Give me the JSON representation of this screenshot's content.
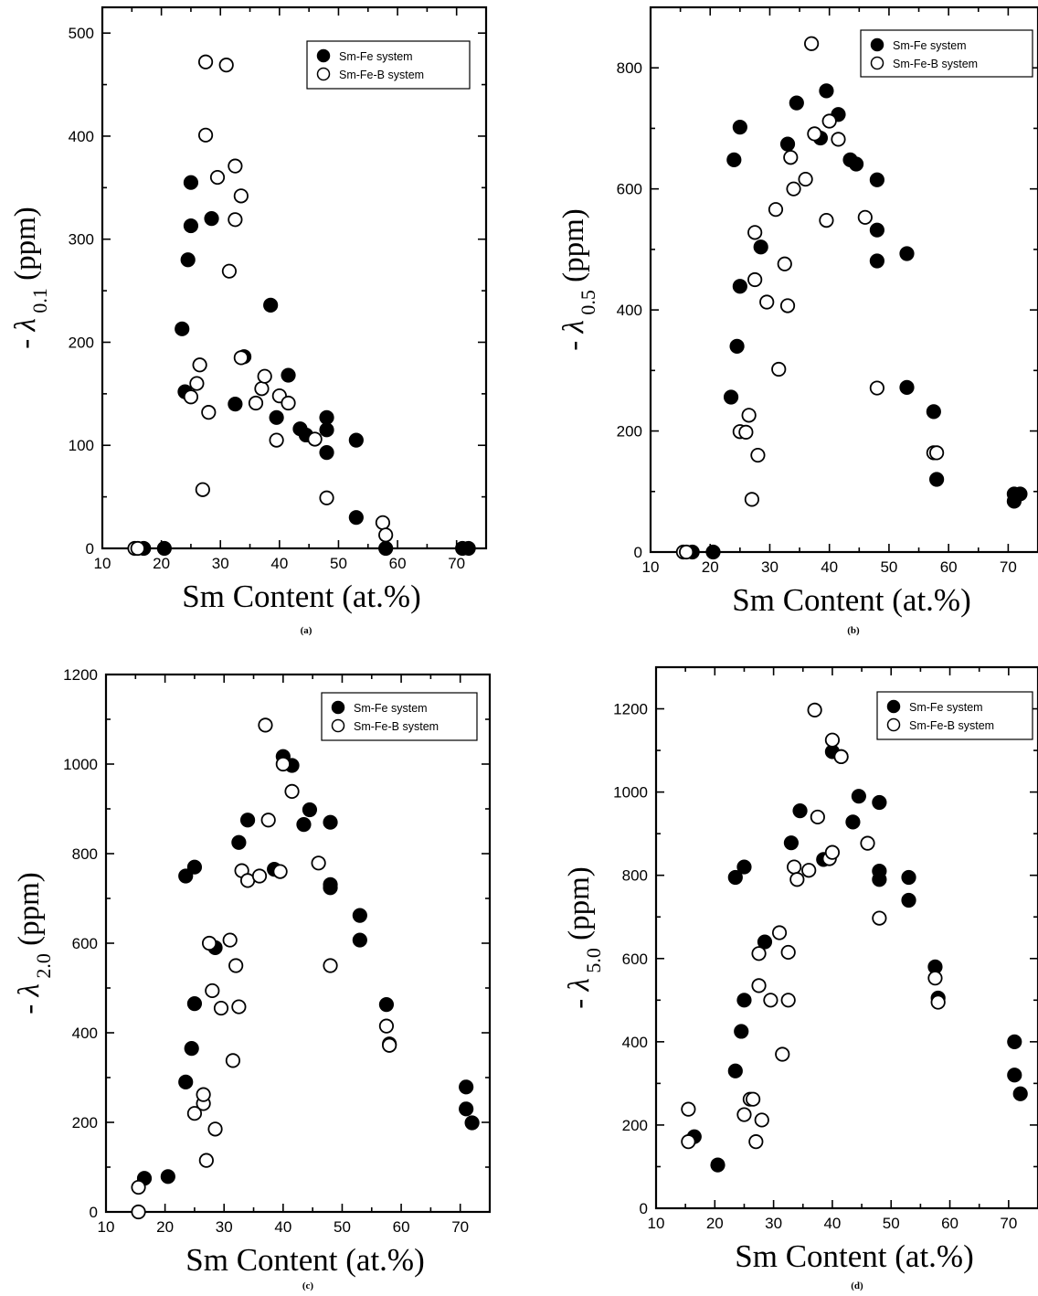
{
  "legend": {
    "filled_label": "Sm-Fe system",
    "open_label": "Sm-Fe-B system"
  },
  "chart_data": [
    {
      "type": "scatter",
      "panel_label": "(a)",
      "xlabel": "Sm  Content (at.%)",
      "ylabel_prefix": "- λ",
      "ylabel_sub": "0.1",
      "ylabel_unit": " (ppm)",
      "xlim": [
        10,
        75
      ],
      "ylim": [
        0,
        525
      ],
      "xticks": [
        10,
        20,
        30,
        40,
        50,
        60,
        70
      ],
      "yticks": [
        0,
        100,
        200,
        300,
        400,
        500
      ],
      "legend_position": "top-right",
      "series": [
        {
          "name": "Sm-Fe system",
          "marker": "filled",
          "points": [
            [
              17,
              0
            ],
            [
              20.5,
              0
            ],
            [
              23.5,
              213
            ],
            [
              24,
              152
            ],
            [
              24.5,
              280
            ],
            [
              25,
              313
            ],
            [
              25,
              355
            ],
            [
              28.5,
              320
            ],
            [
              32.5,
              140
            ],
            [
              34,
              186
            ],
            [
              38.5,
              236
            ],
            [
              39.5,
              127
            ],
            [
              41.5,
              168
            ],
            [
              43.5,
              116
            ],
            [
              44.5,
              110
            ],
            [
              48,
              127
            ],
            [
              48,
              115
            ],
            [
              48,
              93
            ],
            [
              53,
              105
            ],
            [
              53,
              30
            ],
            [
              58,
              0
            ],
            [
              71,
              0
            ],
            [
              72,
              0
            ]
          ]
        },
        {
          "name": "Sm-Fe-B system",
          "marker": "open",
          "points": [
            [
              15.5,
              0
            ],
            [
              16,
              0
            ],
            [
              25,
              147
            ],
            [
              26,
              160
            ],
            [
              26.5,
              178
            ],
            [
              27,
              57
            ],
            [
              27.5,
              472
            ],
            [
              27.5,
              401
            ],
            [
              28,
              132
            ],
            [
              29.5,
              360
            ],
            [
              31,
              469
            ],
            [
              31.5,
              269
            ],
            [
              32.5,
              371
            ],
            [
              32.5,
              319
            ],
            [
              33.5,
              342
            ],
            [
              33.5,
              185
            ],
            [
              36,
              141
            ],
            [
              37,
              155
            ],
            [
              37.5,
              167
            ],
            [
              39.5,
              105
            ],
            [
              40,
              148
            ],
            [
              41.5,
              141
            ],
            [
              46,
              106
            ],
            [
              48,
              49
            ],
            [
              57.5,
              25
            ],
            [
              58,
              13
            ]
          ]
        }
      ]
    },
    {
      "type": "scatter",
      "panel_label": "(b)",
      "xlabel": "Sm  Content (at.%)",
      "ylabel_prefix": "- λ",
      "ylabel_sub": "0.5",
      "ylabel_unit": " (ppm)",
      "xlim": [
        10,
        75
      ],
      "ylim": [
        0,
        900
      ],
      "xticks": [
        10,
        20,
        30,
        40,
        50,
        60,
        70
      ],
      "yticks": [
        0,
        200,
        400,
        600,
        800
      ],
      "legend_position": "top-right",
      "series": [
        {
          "name": "Sm-Fe system",
          "marker": "filled",
          "points": [
            [
              17,
              0
            ],
            [
              20.5,
              0
            ],
            [
              23.5,
              256
            ],
            [
              24,
              648
            ],
            [
              24.5,
              340
            ],
            [
              25,
              439
            ],
            [
              25,
              702
            ],
            [
              28.5,
              504
            ],
            [
              33,
              674
            ],
            [
              34.5,
              742
            ],
            [
              38.5,
              684
            ],
            [
              39.5,
              762
            ],
            [
              41.5,
              723
            ],
            [
              43.5,
              648
            ],
            [
              44.5,
              641
            ],
            [
              48,
              615
            ],
            [
              48,
              532
            ],
            [
              48,
              481
            ],
            [
              53,
              493
            ],
            [
              53,
              272
            ],
            [
              57.5,
              232
            ],
            [
              58,
              120
            ],
            [
              71,
              84
            ],
            [
              71,
              96
            ],
            [
              72,
              96
            ]
          ]
        },
        {
          "name": "Sm-Fe-B system",
          "marker": "open",
          "points": [
            [
              15.5,
              0
            ],
            [
              16,
              0
            ],
            [
              25,
              199
            ],
            [
              26,
              198
            ],
            [
              26.5,
              226
            ],
            [
              27,
              87
            ],
            [
              27.5,
              528
            ],
            [
              27.5,
              450
            ],
            [
              28,
              160
            ],
            [
              29.5,
              413
            ],
            [
              31,
              566
            ],
            [
              31.5,
              302
            ],
            [
              32.5,
              476
            ],
            [
              33,
              407
            ],
            [
              33.5,
              652
            ],
            [
              34,
              600
            ],
            [
              36,
              616
            ],
            [
              37,
              840
            ],
            [
              37.5,
              691
            ],
            [
              39.5,
              548
            ],
            [
              40,
              712
            ],
            [
              41.5,
              682
            ],
            [
              46,
              553
            ],
            [
              48,
              271
            ],
            [
              57.5,
              164
            ],
            [
              58,
              164
            ]
          ]
        }
      ]
    },
    {
      "type": "scatter",
      "panel_label": "(c)",
      "xlabel": "Sm  Content (at.%)",
      "ylabel_prefix": "- λ",
      "ylabel_sub": "2.0",
      "ylabel_unit": " (ppm)",
      "xlim": [
        10,
        75
      ],
      "ylim": [
        0,
        1200
      ],
      "xticks": [
        10,
        20,
        30,
        40,
        50,
        60,
        70
      ],
      "yticks": [
        0,
        200,
        400,
        600,
        800,
        1000,
        1200
      ],
      "legend_position": "top-right",
      "series": [
        {
          "name": "Sm-Fe system",
          "marker": "filled",
          "points": [
            [
              16.5,
              75
            ],
            [
              20.5,
              79
            ],
            [
              23.5,
              290
            ],
            [
              23.5,
              750
            ],
            [
              24.5,
              365
            ],
            [
              25,
              465
            ],
            [
              25,
              770
            ],
            [
              28.5,
              590
            ],
            [
              32.5,
              825
            ],
            [
              34,
              875
            ],
            [
              38.5,
              765
            ],
            [
              40,
              1017
            ],
            [
              41.5,
              997
            ],
            [
              43.5,
              865
            ],
            [
              44.5,
              898
            ],
            [
              48,
              870
            ],
            [
              48,
              731
            ],
            [
              48,
              724
            ],
            [
              53,
              662
            ],
            [
              53,
              607
            ],
            [
              57.5,
              463
            ],
            [
              58,
              375
            ],
            [
              71,
              279
            ],
            [
              71,
              230
            ],
            [
              72,
              199
            ]
          ]
        },
        {
          "name": "Sm-Fe-B system",
          "marker": "open",
          "points": [
            [
              15.5,
              55
            ],
            [
              15.5,
              0
            ],
            [
              25,
              220
            ],
            [
              26.5,
              242
            ],
            [
              26.5,
              262
            ],
            [
              27,
              115
            ],
            [
              27.5,
              600
            ],
            [
              28,
              494
            ],
            [
              28.5,
              185
            ],
            [
              29.5,
              455
            ],
            [
              31,
              607
            ],
            [
              31.5,
              338
            ],
            [
              32,
              550
            ],
            [
              32.5,
              458
            ],
            [
              33,
              762
            ],
            [
              34,
              740
            ],
            [
              36,
              750
            ],
            [
              37,
              1087
            ],
            [
              37.5,
              875
            ],
            [
              39.5,
              760
            ],
            [
              40,
              1000
            ],
            [
              41.5,
              939
            ],
            [
              46,
              779
            ],
            [
              48,
              550
            ],
            [
              57.5,
              415
            ],
            [
              58,
              372
            ]
          ]
        }
      ]
    },
    {
      "type": "scatter",
      "panel_label": "(d)",
      "xlabel": "Sm  Content (at.%)",
      "ylabel_prefix": "- λ",
      "ylabel_sub": "5.0",
      "ylabel_unit": " (ppm)",
      "xlim": [
        10,
        75
      ],
      "ylim": [
        0,
        1300
      ],
      "xticks": [
        10,
        20,
        30,
        40,
        50,
        60,
        70
      ],
      "yticks": [
        0,
        200,
        400,
        600,
        800,
        1000,
        1200
      ],
      "legend_position": "top-right",
      "series": [
        {
          "name": "Sm-Fe system",
          "marker": "filled",
          "points": [
            [
              16.5,
              172
            ],
            [
              20.5,
              104
            ],
            [
              23.5,
              330
            ],
            [
              23.5,
              795
            ],
            [
              24.5,
              425
            ],
            [
              25,
              500
            ],
            [
              25,
              820
            ],
            [
              28.5,
              640
            ],
            [
              33,
              878
            ],
            [
              34.5,
              955
            ],
            [
              38.5,
              838
            ],
            [
              40,
              1097
            ],
            [
              41.5,
              1085
            ],
            [
              43.5,
              928
            ],
            [
              44.5,
              990
            ],
            [
              48,
              975
            ],
            [
              48,
              810
            ],
            [
              48,
              790
            ],
            [
              53,
              795
            ],
            [
              53,
              740
            ],
            [
              57.5,
              580
            ],
            [
              58,
              505
            ],
            [
              71,
              400
            ],
            [
              71,
              320
            ],
            [
              72,
              275
            ]
          ]
        },
        {
          "name": "Sm-Fe-B system",
          "marker": "open",
          "points": [
            [
              15.5,
              238
            ],
            [
              15.5,
              160
            ],
            [
              25,
              225
            ],
            [
              26,
              262
            ],
            [
              26.5,
              262
            ],
            [
              27,
              160
            ],
            [
              27.5,
              612
            ],
            [
              27.5,
              535
            ],
            [
              28,
              212
            ],
            [
              29.5,
              500
            ],
            [
              31,
              662
            ],
            [
              31.5,
              370
            ],
            [
              32.5,
              615
            ],
            [
              32.5,
              500
            ],
            [
              33.5,
              820
            ],
            [
              34,
              790
            ],
            [
              36,
              812
            ],
            [
              37,
              1197
            ],
            [
              37.5,
              940
            ],
            [
              39.5,
              840
            ],
            [
              40,
              855
            ],
            [
              40,
              1125
            ],
            [
              41.5,
              1085
            ],
            [
              46,
              877
            ],
            [
              48,
              697
            ],
            [
              57.5,
              553
            ],
            [
              58,
              495
            ]
          ]
        }
      ]
    }
  ]
}
